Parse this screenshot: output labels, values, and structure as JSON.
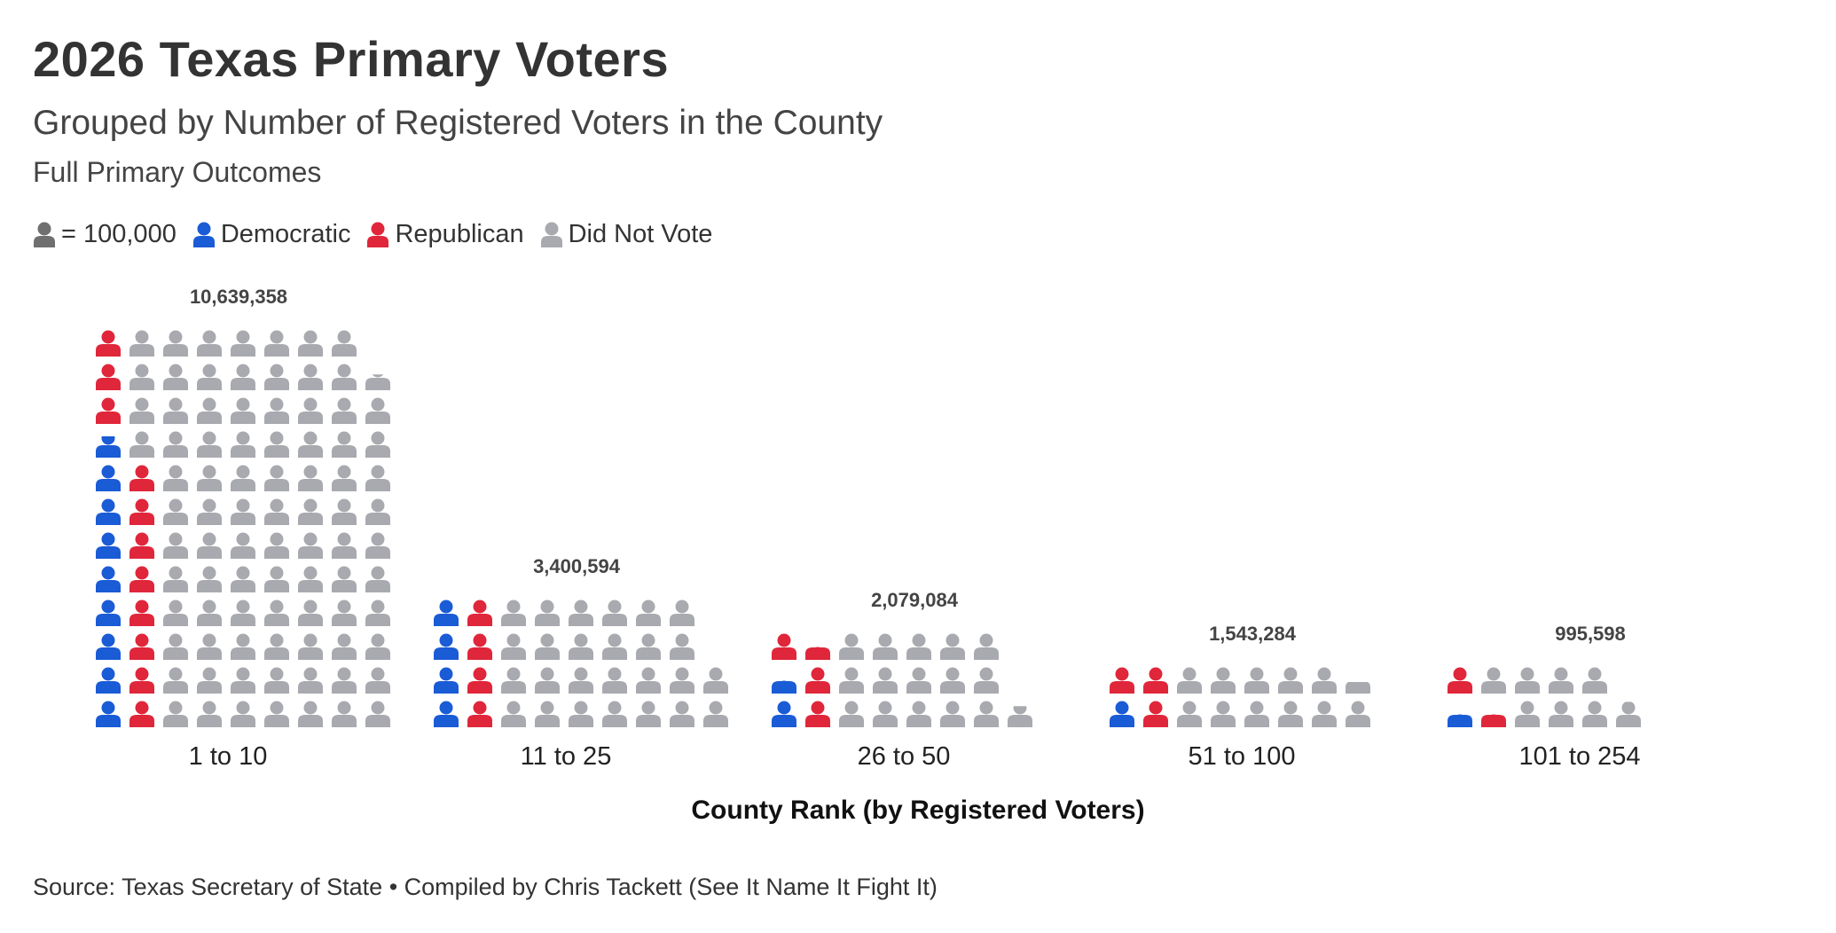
{
  "title": "2026 Texas Primary Voters",
  "subtitle": "Grouped by Number of Registered Voters in the County",
  "subsubtitle": "Full Primary Outcomes",
  "legend": {
    "unit_label": "= 100,000",
    "democratic": "Democratic",
    "republican": "Republican",
    "did_not_vote": "Did Not Vote"
  },
  "colors": {
    "democratic": "#1a5bd6",
    "republican": "#e0263a",
    "did_not_vote": "#a8aaaf",
    "unit_icon": "#6f6f6f"
  },
  "icons": {
    "unit": "person-icon",
    "democratic": "person-icon",
    "republican": "person-icon",
    "did_not_vote": "person-icon"
  },
  "chart_data": {
    "type": "pictogram",
    "unit": 100000,
    "xlabel": "County Rank (by Registered Voters)",
    "ylabel": "",
    "categories": [
      "1 to 10",
      "11 to 25",
      "26 to 50",
      "51 to 100",
      "101 to 254"
    ],
    "totals": [
      10639358,
      3400594,
      2079084,
      1543284,
      995598
    ],
    "total_labels": [
      "10,639,358",
      "3,400,594",
      "2,079,084",
      "1,543,284",
      "995,598"
    ],
    "series": [
      {
        "name": "Democratic",
        "values": [
          880000,
          400000,
          150000,
          100000,
          50000
        ]
      },
      {
        "name": "Republican",
        "values": [
          1100000,
          400000,
          350000,
          300000,
          150000
        ]
      },
      {
        "name": "Did Not Vote",
        "values": [
          8659358,
          2600594,
          1579084,
          1143284,
          795598
        ]
      }
    ]
  },
  "source": "Source: Texas Secretary of State • Compiled by Chris Tackett (See It Name It Fight It)"
}
